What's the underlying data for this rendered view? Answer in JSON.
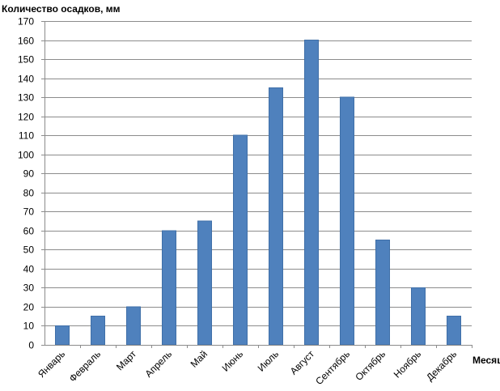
{
  "chart_data": {
    "type": "bar",
    "ylabel": "Количество  осадков, мм",
    "xlabel": "Месяц",
    "categories": [
      "Январь",
      "Февраль",
      "Март",
      "Апрель",
      "Май",
      "Июнь",
      "Июль",
      "Август",
      "Сентябрь",
      "Октябрь",
      "Ноябрь",
      "Декабрь"
    ],
    "values": [
      10,
      15,
      20,
      60,
      65,
      110,
      135,
      160,
      130,
      55,
      30,
      15
    ],
    "ylim": [
      0,
      170
    ],
    "ystep": 10,
    "grid": true,
    "legend": "none",
    "bar_color": "#4f81bd"
  }
}
